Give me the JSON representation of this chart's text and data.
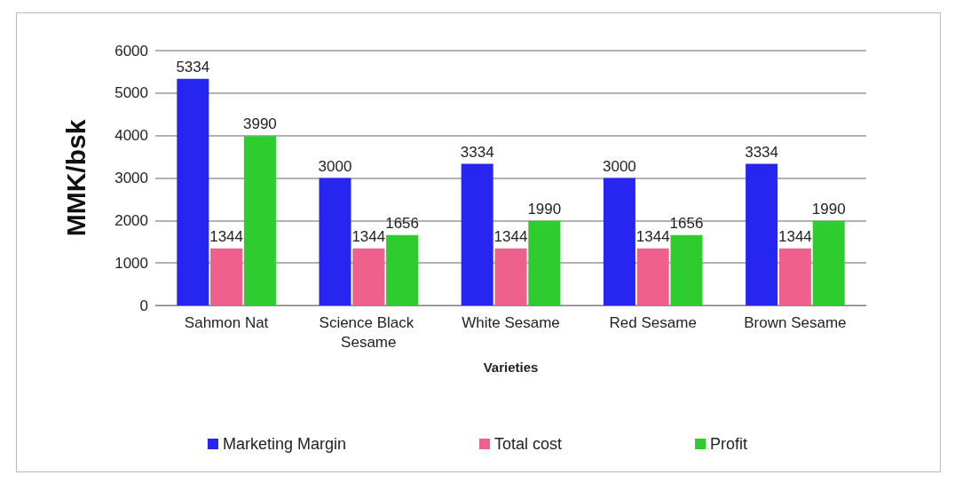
{
  "chart_data": {
    "type": "bar",
    "xlabel": "Varieties",
    "ylabel": "MMK/bsk",
    "categories": [
      "Sahmon Nat",
      "Science Black Sesame",
      "White Sesame",
      "Red Sesame",
      "Brown Sesame"
    ],
    "series": [
      {
        "name": "Marketing Margin",
        "color": "#2626f0",
        "values": [
          5334,
          3000,
          3334,
          3000,
          3334
        ]
      },
      {
        "name": "Total cost",
        "color": "#f0608c",
        "values": [
          1344,
          1344,
          1344,
          1344,
          1344
        ]
      },
      {
        "name": "Profit",
        "color": "#2ecc2e",
        "values": [
          3990,
          1656,
          1990,
          1656,
          1990
        ]
      }
    ],
    "ylim": [
      0,
      6000
    ],
    "yticks": [
      0,
      1000,
      2000,
      3000,
      4000,
      5000,
      6000
    ],
    "grid": "y",
    "legend": "bottom",
    "data_labels": true
  }
}
